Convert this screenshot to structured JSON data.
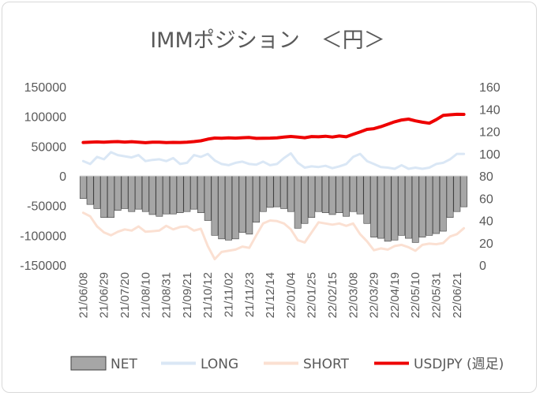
{
  "chart_data": {
    "type": "bar",
    "title": "IMMポジション　＜円＞",
    "grid": false,
    "legend_position": "bottom",
    "x_tick_labels": [
      "21/06/08",
      "21/06/29",
      "21/07/20",
      "21/08/10",
      "21/08/31",
      "21/09/21",
      "21/10/12",
      "21/11/02",
      "21/11/23",
      "21/12/14",
      "22/01/04",
      "22/01/25",
      "22/02/15",
      "22/03/08",
      "22/03/29",
      "22/04/19",
      "22/05/10",
      "22/05/31",
      "22/06/21"
    ],
    "y_left": {
      "min": -150000,
      "max": 150000,
      "ticks": [
        "150000",
        "100000",
        "50000",
        "0",
        "-50000",
        "-100000",
        "-150000"
      ]
    },
    "y_right": {
      "min": 0,
      "max": 160,
      "ticks": [
        "160",
        "140",
        "120",
        "100",
        "80",
        "60",
        "40",
        "20",
        "0"
      ]
    },
    "series": [
      {
        "name": "NET",
        "type": "bar",
        "axis": "left",
        "color": "#a6a6a6",
        "values": [
          -38000,
          -48000,
          -55000,
          -70000,
          -70000,
          -58000,
          -55000,
          -60000,
          -56000,
          -60000,
          -65000,
          -68000,
          -64000,
          -64000,
          -62000,
          -60000,
          -56000,
          -62000,
          -75000,
          -100000,
          -106000,
          -108000,
          -106000,
          -95000,
          -98000,
          -78000,
          -60000,
          -53000,
          -52000,
          -55000,
          -60000,
          -88000,
          -80000,
          -70000,
          -60000,
          -62000,
          -65000,
          -62000,
          -68000,
          -60000,
          -64000,
          -80000,
          -103000,
          -105000,
          -110000,
          -108000,
          -100000,
          -105000,
          -112000,
          -103000,
          -100000,
          -97000,
          -93000,
          -70000,
          -60000,
          -52000
        ]
      },
      {
        "name": "LONG",
        "type": "line",
        "axis": "left",
        "color": "#dae7f5",
        "values": [
          25000,
          20000,
          32000,
          28000,
          40000,
          35000,
          33000,
          31000,
          35000,
          25000,
          27000,
          28000,
          25000,
          30000,
          20000,
          22000,
          35000,
          32000,
          37000,
          26000,
          20000,
          18000,
          22000,
          24000,
          20000,
          19000,
          24000,
          18000,
          20000,
          30000,
          38000,
          22000,
          14000,
          16000,
          15000,
          17000,
          13000,
          16000,
          20000,
          32000,
          37000,
          25000,
          20000,
          15000,
          14000,
          12000,
          18000,
          12000,
          14000,
          12000,
          14000,
          20000,
          22000,
          28000,
          37000,
          37000
        ]
      },
      {
        "name": "SHORT",
        "type": "line",
        "axis": "left",
        "color": "#fbe0d2",
        "values": [
          -62000,
          -68000,
          -85000,
          -95000,
          -100000,
          -94000,
          -90000,
          -92000,
          -85000,
          -94000,
          -93000,
          -92000,
          -84000,
          -90000,
          -86000,
          -85000,
          -92000,
          -89000,
          -118000,
          -140000,
          -128000,
          -126000,
          -124000,
          -119000,
          -121000,
          -100000,
          -80000,
          -75000,
          -76000,
          -80000,
          -90000,
          -108000,
          -112000,
          -95000,
          -78000,
          -80000,
          -82000,
          -80000,
          -84000,
          -80000,
          -98000,
          -110000,
          -125000,
          -122000,
          -124000,
          -118000,
          -116000,
          -120000,
          -126000,
          -116000,
          -114000,
          -115000,
          -113000,
          -102000,
          -98000,
          -88000
        ]
      },
      {
        "name": "USDJPY (週足)",
        "type": "line",
        "axis": "right",
        "color": "#ee0000",
        "values": [
          110.0,
          110.3,
          110.5,
          110.2,
          110.6,
          110.8,
          110.4,
          110.7,
          110.2,
          109.8,
          110.2,
          110.3,
          109.9,
          110.1,
          110.0,
          110.2,
          110.8,
          111.5,
          113.0,
          114.0,
          113.8,
          114.2,
          113.9,
          114.3,
          114.5,
          113.7,
          113.8,
          113.9,
          114.2,
          114.8,
          115.4,
          114.8,
          114.3,
          115.3,
          115.1,
          115.6,
          114.9,
          115.8,
          115.1,
          117.3,
          119.5,
          121.8,
          122.4,
          124.2,
          126.4,
          128.6,
          130.2,
          131.0,
          129.4,
          128.2,
          127.3,
          130.5,
          134.3,
          134.9,
          135.3,
          135.2
        ]
      }
    ]
  }
}
